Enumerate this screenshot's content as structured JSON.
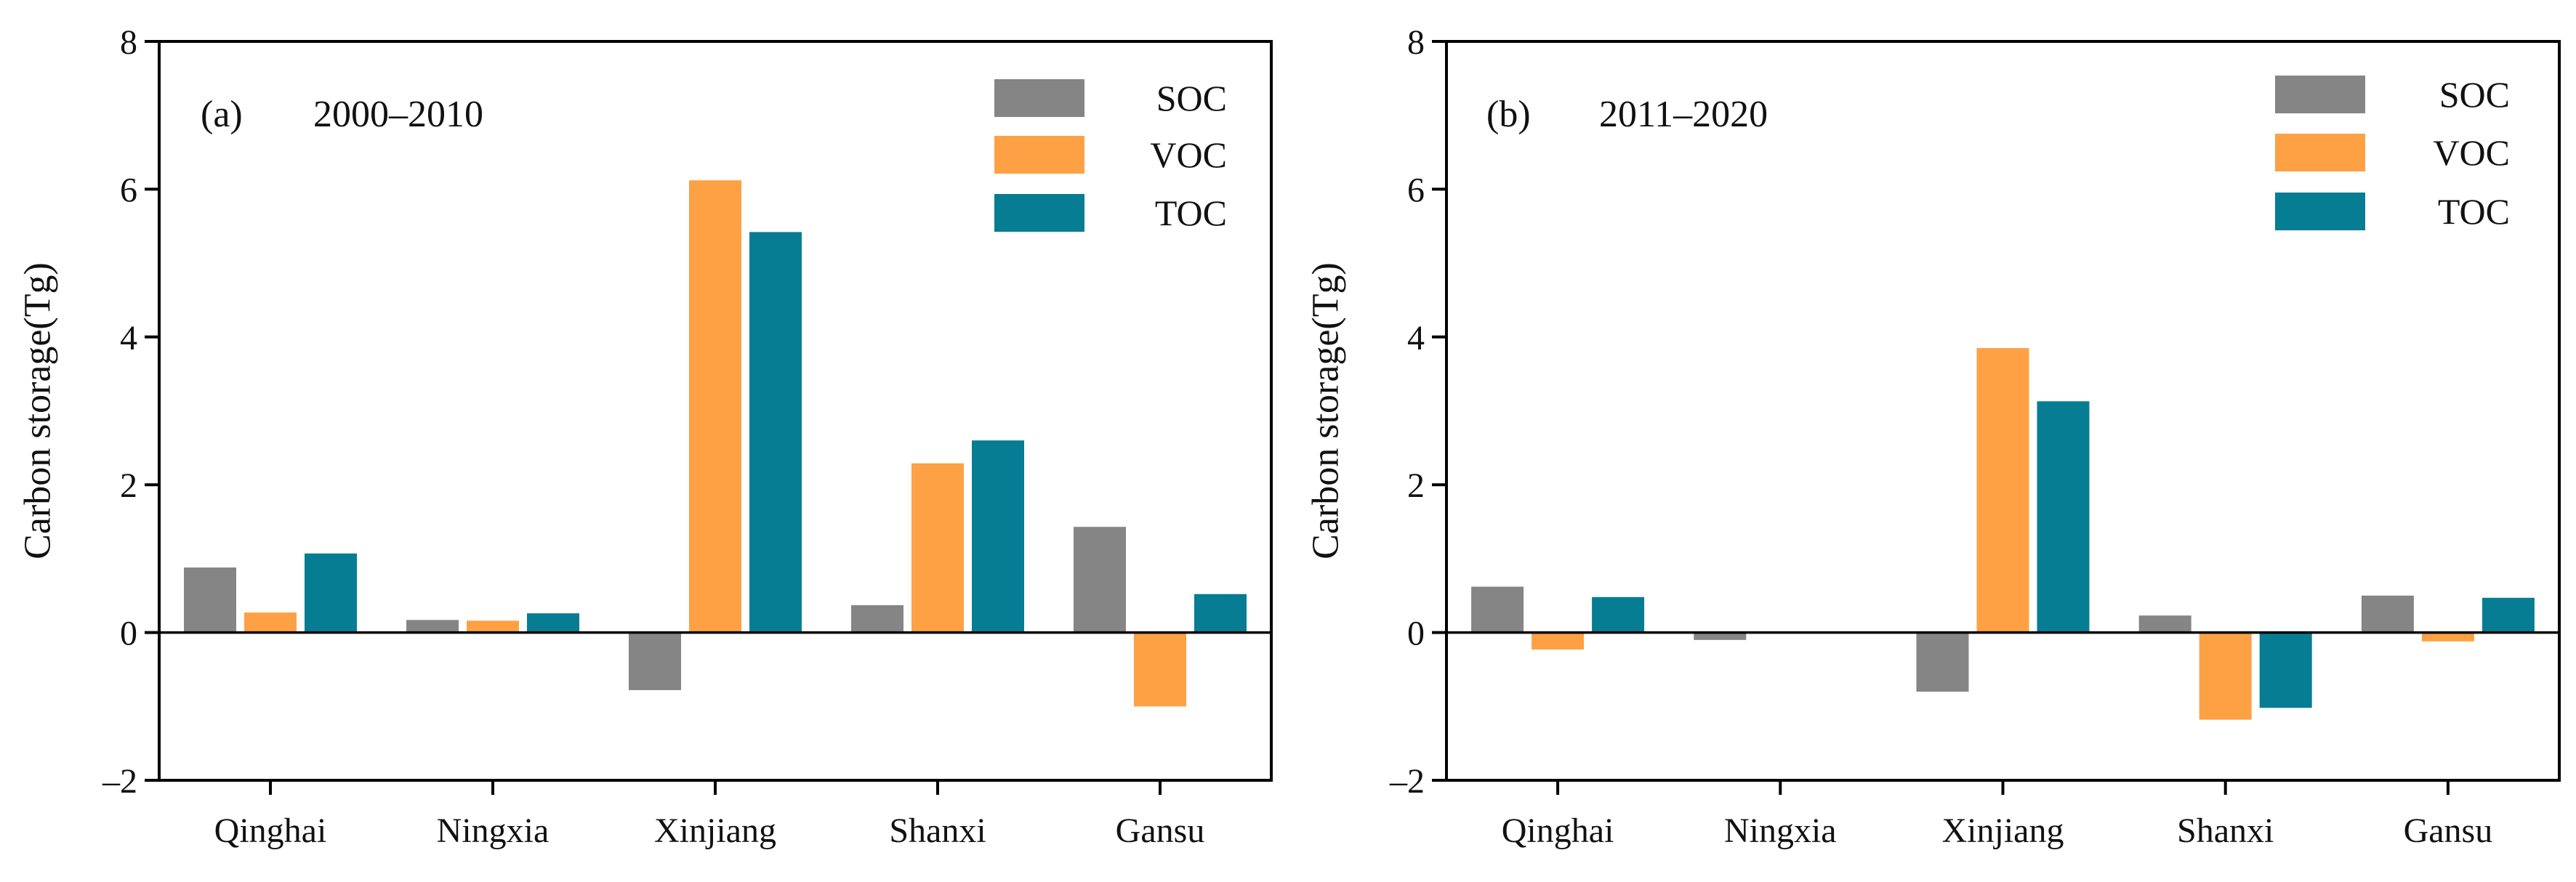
{
  "colors": {
    "SOC": "#858585",
    "VOC": "#FDA144",
    "TOC": "#077D93"
  },
  "chart_data": [
    {
      "type": "bar",
      "panel_label": "(a)",
      "title": "2000–2010",
      "xlabel": "",
      "ylabel": "Carbon storage(Tg)",
      "ylim": [
        -2,
        8
      ],
      "yticks": [
        -2,
        0,
        2,
        4,
        6,
        8
      ],
      "ytick_labels": [
        "–2",
        "0",
        "2",
        "4",
        "6",
        "8"
      ],
      "grid": false,
      "legend_position": "top-right",
      "categories": [
        "Qinghai",
        "Ningxia",
        "Xinjiang",
        "Shanxi",
        "Gansu"
      ],
      "series": [
        {
          "name": "SOC",
          "values": [
            0.88,
            0.17,
            -0.78,
            0.37,
            1.43
          ]
        },
        {
          "name": "VOC",
          "values": [
            0.27,
            0.16,
            6.12,
            2.29,
            -1.0
          ]
        },
        {
          "name": "TOC",
          "values": [
            1.07,
            0.26,
            5.42,
            2.6,
            0.52
          ]
        }
      ]
    },
    {
      "type": "bar",
      "panel_label": "(b)",
      "title": "2011–2020",
      "xlabel": "",
      "ylabel": "Carbon storage(Tg)",
      "ylim": [
        -2,
        8
      ],
      "yticks": [
        -2,
        0,
        2,
        4,
        6,
        8
      ],
      "ytick_labels": [
        "–2",
        "0",
        "2",
        "4",
        "6",
        "8"
      ],
      "grid": false,
      "legend_position": "top-right",
      "categories": [
        "Qinghai",
        "Ningxia",
        "Xinjiang",
        "Shanxi",
        "Gansu"
      ],
      "series": [
        {
          "name": "SOC",
          "values": [
            0.62,
            -0.1,
            -0.8,
            0.23,
            0.5
          ]
        },
        {
          "name": "VOC",
          "values": [
            -0.23,
            0.0,
            3.85,
            -1.18,
            -0.12
          ]
        },
        {
          "name": "TOC",
          "values": [
            0.48,
            0.0,
            3.13,
            -1.02,
            0.47
          ]
        }
      ]
    }
  ]
}
